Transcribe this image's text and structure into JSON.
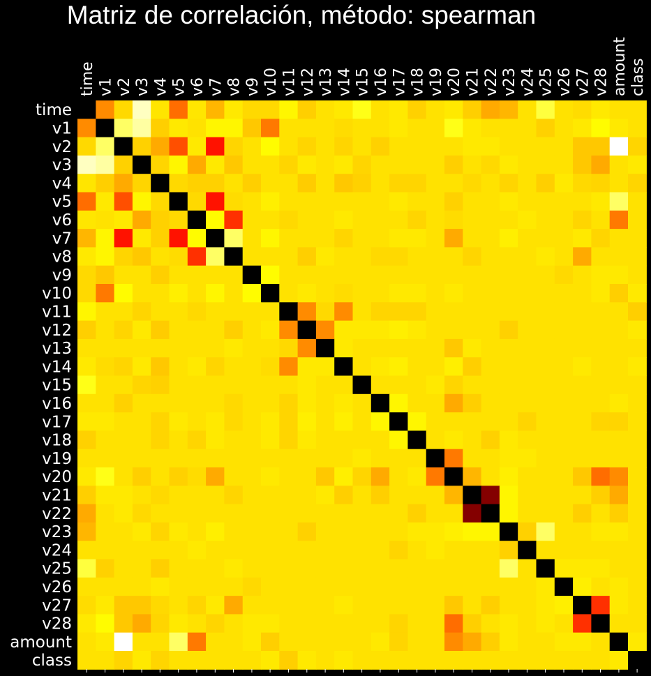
{
  "chart_data": {
    "type": "heatmap",
    "title": "Matriz de correlación, método: spearman",
    "labels": [
      "time",
      "v1",
      "v2",
      "v3",
      "v4",
      "v5",
      "v6",
      "v7",
      "v8",
      "v9",
      "v10",
      "v11",
      "v12",
      "v13",
      "v14",
      "v15",
      "v16",
      "v17",
      "v18",
      "v19",
      "v20",
      "v21",
      "v22",
      "v23",
      "v24",
      "v25",
      "v26",
      "v27",
      "v28",
      "amount",
      "class"
    ],
    "colormap": "hot_r",
    "colors": {
      "background": "#000000",
      "text": "#ffffff",
      "diagonal": "#000000",
      "high": "#8b0000",
      "mid": "#ff0000",
      "low": "#ffffff"
    },
    "value_range": [
      0,
      1
    ],
    "diagonal_value": 1,
    "default_value": 0.05,
    "pairs": [
      {
        "a": "time",
        "b": "v1",
        "v": 0.35
      },
      {
        "a": "time",
        "b": "v2",
        "v": 0.12
      },
      {
        "a": "time",
        "b": "v3",
        "v": -0.42
      },
      {
        "a": "time",
        "b": "v4",
        "v": 0.03
      },
      {
        "a": "time",
        "b": "v5",
        "v": 0.4
      },
      {
        "a": "time",
        "b": "v6",
        "v": 0.02
      },
      {
        "a": "time",
        "b": "v7",
        "v": 0.28
      },
      {
        "a": "time",
        "b": "v8",
        "v": 0.0
      },
      {
        "a": "time",
        "b": "v9",
        "v": 0.12
      },
      {
        "a": "time",
        "b": "v10",
        "v": 0.12
      },
      {
        "a": "time",
        "b": "v11",
        "v": -0.1
      },
      {
        "a": "time",
        "b": "v12",
        "v": 0.2
      },
      {
        "a": "time",
        "b": "v14",
        "v": 0.0
      },
      {
        "a": "time",
        "b": "v15",
        "v": -0.2
      },
      {
        "a": "time",
        "b": "v17",
        "v": 0.0
      },
      {
        "a": "time",
        "b": "v18",
        "v": 0.18
      },
      {
        "a": "time",
        "b": "v20",
        "v": 0.0
      },
      {
        "a": "time",
        "b": "v21",
        "v": 0.2
      },
      {
        "a": "time",
        "b": "v22",
        "v": 0.3
      },
      {
        "a": "time",
        "b": "v23",
        "v": 0.28
      },
      {
        "a": "time",
        "b": "v25",
        "v": -0.25
      },
      {
        "a": "time",
        "b": "v27",
        "v": 0.1
      },
      {
        "a": "time",
        "b": "v28",
        "v": 0.0
      },
      {
        "a": "v1",
        "b": "v2",
        "v": -0.3
      },
      {
        "a": "v1",
        "b": "v3",
        "v": -0.38
      },
      {
        "a": "v1",
        "b": "v4",
        "v": 0.2
      },
      {
        "a": "v1",
        "b": "v5",
        "v": 0.0
      },
      {
        "a": "v1",
        "b": "v7",
        "v": -0.1
      },
      {
        "a": "v1",
        "b": "v8",
        "v": -0.1
      },
      {
        "a": "v1",
        "b": "v9",
        "v": 0.25
      },
      {
        "a": "v1",
        "b": "v10",
        "v": 0.38
      },
      {
        "a": "v1",
        "b": "v14",
        "v": 0.1
      },
      {
        "a": "v1",
        "b": "v17",
        "v": 0.0
      },
      {
        "a": "v1",
        "b": "v20",
        "v": -0.2
      },
      {
        "a": "v1",
        "b": "v21",
        "v": 0.0
      },
      {
        "a": "v1",
        "b": "v25",
        "v": 0.18
      },
      {
        "a": "v1",
        "b": "v27",
        "v": 0.0
      },
      {
        "a": "v1",
        "b": "v28",
        "v": -0.15
      },
      {
        "a": "v1",
        "b": "amount",
        "v": 0.0
      },
      {
        "a": "v2",
        "b": "v3",
        "v": 0.18
      },
      {
        "a": "v2",
        "b": "v4",
        "v": 0.3
      },
      {
        "a": "v2",
        "b": "v5",
        "v": 0.45
      },
      {
        "a": "v2",
        "b": "v6",
        "v": 0.0
      },
      {
        "a": "v2",
        "b": "v7",
        "v": 0.55
      },
      {
        "a": "v2",
        "b": "v8",
        "v": 0.15
      },
      {
        "a": "v2",
        "b": "v9",
        "v": 0.05
      },
      {
        "a": "v2",
        "b": "v10",
        "v": -0.15
      },
      {
        "a": "v2",
        "b": "v12",
        "v": 0.15
      },
      {
        "a": "v2",
        "b": "v14",
        "v": 0.15
      },
      {
        "a": "v2",
        "b": "v16",
        "v": 0.18
      },
      {
        "a": "v2",
        "b": "v21",
        "v": 0.0
      },
      {
        "a": "v2",
        "b": "v22",
        "v": 0.0
      },
      {
        "a": "v2",
        "b": "v27",
        "v": 0.25
      },
      {
        "a": "v2",
        "b": "v28",
        "v": 0.25
      },
      {
        "a": "v2",
        "b": "amount",
        "v": -0.5
      },
      {
        "a": "v2",
        "b": "class",
        "v": 0.15
      },
      {
        "a": "v3",
        "b": "v4",
        "v": 0.15
      },
      {
        "a": "v3",
        "b": "v5",
        "v": -0.1
      },
      {
        "a": "v3",
        "b": "v6",
        "v": 0.3
      },
      {
        "a": "v3",
        "b": "v7",
        "v": 0.0
      },
      {
        "a": "v3",
        "b": "v8",
        "v": 0.25
      },
      {
        "a": "v3",
        "b": "v11",
        "v": 0.15
      },
      {
        "a": "v3",
        "b": "v12",
        "v": 0.0
      },
      {
        "a": "v3",
        "b": "v14",
        "v": 0.0
      },
      {
        "a": "v3",
        "b": "v15",
        "v": 0.15
      },
      {
        "a": "v3",
        "b": "v20",
        "v": 0.2
      },
      {
        "a": "v3",
        "b": "v22",
        "v": 0.12
      },
      {
        "a": "v3",
        "b": "v23",
        "v": 0.0
      },
      {
        "a": "v3",
        "b": "v27",
        "v": 0.25
      },
      {
        "a": "v3",
        "b": "v28",
        "v": 0.3
      },
      {
        "a": "v3",
        "b": "class",
        "v": 0.0
      },
      {
        "a": "v4",
        "b": "v5",
        "v": 0.12
      },
      {
        "a": "v4",
        "b": "v6",
        "v": 0.18
      },
      {
        "a": "v4",
        "b": "v7",
        "v": 0.18
      },
      {
        "a": "v4",
        "b": "v9",
        "v": 0.2
      },
      {
        "a": "v4",
        "b": "v12",
        "v": 0.22
      },
      {
        "a": "v4",
        "b": "v14",
        "v": 0.25
      },
      {
        "a": "v4",
        "b": "v15",
        "v": 0.18
      },
      {
        "a": "v4",
        "b": "v17",
        "v": 0.15
      },
      {
        "a": "v4",
        "b": "v18",
        "v": 0.15
      },
      {
        "a": "v4",
        "b": "v21",
        "v": 0.12
      },
      {
        "a": "v4",
        "b": "v23",
        "v": 0.15
      },
      {
        "a": "v4",
        "b": "v25",
        "v": 0.2
      },
      {
        "a": "v4",
        "b": "v26",
        "v": 0.0
      },
      {
        "a": "v4",
        "b": "v27",
        "v": 0.12
      },
      {
        "a": "v4",
        "b": "v28",
        "v": 0.15
      },
      {
        "a": "v4",
        "b": "class",
        "v": 0.15
      },
      {
        "a": "v5",
        "b": "v6",
        "v": 0.12
      },
      {
        "a": "v5",
        "b": "v7",
        "v": 0.55
      },
      {
        "a": "v5",
        "b": "v8",
        "v": 0.1
      },
      {
        "a": "v5",
        "b": "v10",
        "v": -0.05
      },
      {
        "a": "v5",
        "b": "v17",
        "v": 0.0
      },
      {
        "a": "v5",
        "b": "v20",
        "v": 0.18
      },
      {
        "a": "v5",
        "b": "v23",
        "v": 0.0
      },
      {
        "a": "v5",
        "b": "v28",
        "v": 0.0
      },
      {
        "a": "v5",
        "b": "amount",
        "v": -0.3
      },
      {
        "a": "v6",
        "b": "v7",
        "v": -0.15
      },
      {
        "a": "v6",
        "b": "v8",
        "v": 0.5
      },
      {
        "a": "v6",
        "b": "v11",
        "v": 0.12
      },
      {
        "a": "v6",
        "b": "v14",
        "v": 0.0
      },
      {
        "a": "v6",
        "b": "v18",
        "v": 0.15
      },
      {
        "a": "v6",
        "b": "v20",
        "v": 0.1
      },
      {
        "a": "v6",
        "b": "v24",
        "v": 0.0
      },
      {
        "a": "v6",
        "b": "v27",
        "v": 0.15
      },
      {
        "a": "v6",
        "b": "amount",
        "v": 0.38
      },
      {
        "a": "v7",
        "b": "v8",
        "v": -0.3
      },
      {
        "a": "v7",
        "b": "v10",
        "v": -0.1
      },
      {
        "a": "v7",
        "b": "v14",
        "v": 0.15
      },
      {
        "a": "v7",
        "b": "v17",
        "v": 0.0
      },
      {
        "a": "v7",
        "b": "v18",
        "v": 0.0
      },
      {
        "a": "v7",
        "b": "v20",
        "v": 0.3
      },
      {
        "a": "v7",
        "b": "v23",
        "v": -0.05
      },
      {
        "a": "v7",
        "b": "v27",
        "v": 0.0
      },
      {
        "a": "v7",
        "b": "v28",
        "v": 0.15
      },
      {
        "a": "v8",
        "b": "v9",
        "v": 0.05
      },
      {
        "a": "v8",
        "b": "v12",
        "v": 0.2
      },
      {
        "a": "v8",
        "b": "v13",
        "v": 0.0
      },
      {
        "a": "v8",
        "b": "v16",
        "v": 0.12
      },
      {
        "a": "v8",
        "b": "v17",
        "v": 0.12
      },
      {
        "a": "v8",
        "b": "v21",
        "v": 0.15
      },
      {
        "a": "v8",
        "b": "v25",
        "v": 0.0
      },
      {
        "a": "v8",
        "b": "v27",
        "v": 0.3
      },
      {
        "a": "v9",
        "b": "v10",
        "v": -0.15
      },
      {
        "a": "v9",
        "b": "v26",
        "v": 0.12
      },
      {
        "a": "v9",
        "b": "v28",
        "v": 0.0
      },
      {
        "a": "v9",
        "b": "amount",
        "v": 0.0
      },
      {
        "a": "v10",
        "b": "v12",
        "v": 0.0
      },
      {
        "a": "v10",
        "b": "v14",
        "v": 0.1
      },
      {
        "a": "v10",
        "b": "v17",
        "v": 0.0
      },
      {
        "a": "v10",
        "b": "v18",
        "v": 0.0
      },
      {
        "a": "v10",
        "b": "v20",
        "v": 0.0
      },
      {
        "a": "v10",
        "b": "v28",
        "v": 0.0
      },
      {
        "a": "v10",
        "b": "amount",
        "v": 0.2
      },
      {
        "a": "v10",
        "b": "class",
        "v": 0.0
      },
      {
        "a": "v11",
        "b": "v12",
        "v": 0.35
      },
      {
        "a": "v11",
        "b": "v13",
        "v": 0.12
      },
      {
        "a": "v11",
        "b": "v14",
        "v": 0.35
      },
      {
        "a": "v11",
        "b": "v16",
        "v": 0.15
      },
      {
        "a": "v11",
        "b": "v17",
        "v": 0.15
      },
      {
        "a": "v11",
        "b": "v18",
        "v": 0.15
      },
      {
        "a": "v11",
        "b": "class",
        "v": 0.2
      },
      {
        "a": "v12",
        "b": "v13",
        "v": 0.35
      },
      {
        "a": "v12",
        "b": "v14",
        "v": 0.0
      },
      {
        "a": "v12",
        "b": "v15",
        "v": 0.0
      },
      {
        "a": "v12",
        "b": "v16",
        "v": 0.0
      },
      {
        "a": "v12",
        "b": "v17",
        "v": -0.05
      },
      {
        "a": "v12",
        "b": "v18",
        "v": 0.0
      },
      {
        "a": "v12",
        "b": "v23",
        "v": 0.18
      },
      {
        "a": "v12",
        "b": "class",
        "v": 0.0
      },
      {
        "a": "v13",
        "b": "v14",
        "v": 0.0
      },
      {
        "a": "v13",
        "b": "v20",
        "v": 0.25
      },
      {
        "a": "v13",
        "b": "v21",
        "v": 0.0
      },
      {
        "a": "v14",
        "b": "v16",
        "v": 0.0
      },
      {
        "a": "v14",
        "b": "v17",
        "v": -0.05
      },
      {
        "a": "v14",
        "b": "v20",
        "v": -0.05
      },
      {
        "a": "v14",
        "b": "v21",
        "v": 0.2
      },
      {
        "a": "v14",
        "b": "v27",
        "v": 0.0
      },
      {
        "a": "v14",
        "b": "class",
        "v": 0.0
      },
      {
        "a": "v15",
        "b": "v19",
        "v": 0.0
      },
      {
        "a": "v15",
        "b": "v20",
        "v": 0.15
      },
      {
        "a": "v16",
        "b": "v17",
        "v": -0.1
      },
      {
        "a": "v16",
        "b": "v20",
        "v": 0.3
      },
      {
        "a": "v16",
        "b": "v21",
        "v": 0.2
      },
      {
        "a": "v16",
        "b": "amount",
        "v": 0.0
      },
      {
        "a": "v17",
        "b": "v18",
        "v": -0.1
      },
      {
        "a": "v17",
        "b": "v24",
        "v": 0.15
      },
      {
        "a": "v17",
        "b": "v28",
        "v": 0.15
      },
      {
        "a": "v17",
        "b": "amount",
        "v": 0.15
      },
      {
        "a": "v18",
        "b": "v20",
        "v": 0.0
      },
      {
        "a": "v18",
        "b": "v22",
        "v": 0.18
      },
      {
        "a": "v18",
        "b": "v23",
        "v": 0.0
      },
      {
        "a": "v19",
        "b": "v20",
        "v": 0.38
      },
      {
        "a": "v19",
        "b": "v23",
        "v": 0.0
      },
      {
        "a": "v19",
        "b": "v24",
        "v": 0.0
      },
      {
        "a": "v20",
        "b": "v21",
        "v": 0.28
      },
      {
        "a": "v20",
        "b": "v23",
        "v": -0.05
      },
      {
        "a": "v20",
        "b": "v27",
        "v": 0.25
      },
      {
        "a": "v20",
        "b": "v28",
        "v": 0.4
      },
      {
        "a": "v20",
        "b": "amount",
        "v": 0.35
      },
      {
        "a": "v21",
        "b": "v22",
        "v": 0.8
      },
      {
        "a": "v21",
        "b": "v23",
        "v": -0.1
      },
      {
        "a": "v21",
        "b": "v28",
        "v": 0.2
      },
      {
        "a": "v21",
        "b": "amount",
        "v": 0.3
      },
      {
        "a": "v22",
        "b": "v23",
        "v": -0.1
      },
      {
        "a": "v22",
        "b": "v27",
        "v": 0.2
      },
      {
        "a": "v22",
        "b": "amount",
        "v": 0.2
      },
      {
        "a": "v23",
        "b": "v24",
        "v": 0.18
      },
      {
        "a": "v23",
        "b": "v25",
        "v": -0.3
      },
      {
        "a": "v23",
        "b": "v28",
        "v": 0.0
      },
      {
        "a": "v23",
        "b": "amount",
        "v": 0.0
      },
      {
        "a": "v25",
        "b": "v26",
        "v": 0.0
      },
      {
        "a": "v25",
        "b": "v27",
        "v": 0.0
      },
      {
        "a": "v25",
        "b": "v28",
        "v": 0.0
      },
      {
        "a": "v26",
        "b": "v27",
        "v": -0.05
      },
      {
        "a": "v26",
        "b": "amount",
        "v": 0.0
      },
      {
        "a": "v27",
        "b": "v28",
        "v": 0.5
      },
      {
        "a": "v27",
        "b": "amount",
        "v": 0.0
      },
      {
        "a": "amount",
        "b": "class",
        "v": 0.0
      }
    ]
  }
}
